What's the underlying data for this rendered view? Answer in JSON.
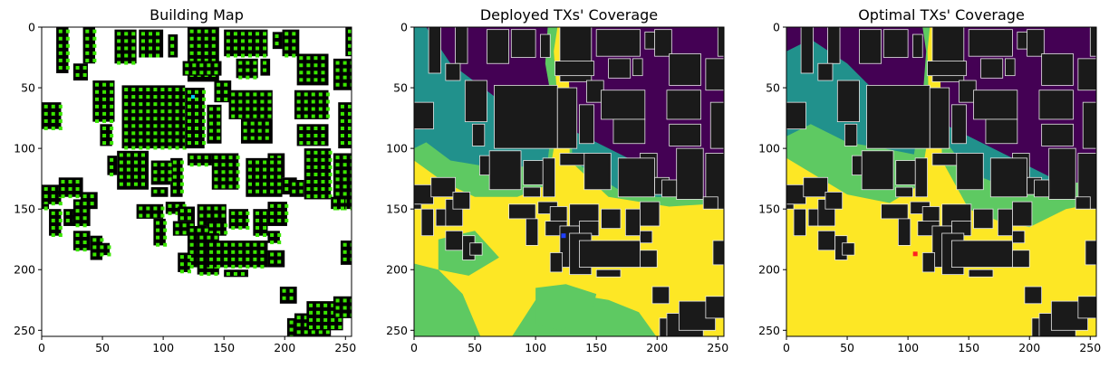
{
  "chart_data": [
    {
      "type": "heatmap",
      "title": "Building Map",
      "xlim": [
        0,
        255
      ],
      "ylim": [
        255,
        0
      ],
      "xticks": [
        0,
        50,
        100,
        150,
        200,
        250
      ],
      "yticks": [
        0,
        50,
        100,
        150,
        200,
        250
      ],
      "grid": false,
      "colors": {
        "background": "#ffffff",
        "building": "#000000",
        "marker": "#39e600",
        "marker_alt": "#00c8ff"
      },
      "buildings": [
        [
          12,
          0,
          22,
          38
        ],
        [
          34,
          0,
          44,
          30
        ],
        [
          26,
          30,
          38,
          44
        ],
        [
          60,
          2,
          78,
          30
        ],
        [
          80,
          2,
          100,
          25
        ],
        [
          104,
          6,
          112,
          25
        ],
        [
          120,
          0,
          146,
          45
        ],
        [
          150,
          2,
          186,
          24
        ],
        [
          198,
          2,
          212,
          24
        ],
        [
          190,
          4,
          198,
          18
        ],
        [
          250,
          0,
          256,
          24
        ],
        [
          240,
          26,
          256,
          52
        ],
        [
          116,
          28,
          148,
          40
        ],
        [
          160,
          26,
          178,
          42
        ],
        [
          180,
          26,
          188,
          40
        ],
        [
          210,
          22,
          236,
          48
        ],
        [
          0,
          62,
          16,
          84
        ],
        [
          42,
          44,
          60,
          78
        ],
        [
          66,
          48,
          118,
          100
        ],
        [
          48,
          80,
          58,
          98
        ],
        [
          118,
          50,
          134,
          100
        ],
        [
          142,
          44,
          156,
          62
        ],
        [
          136,
          64,
          148,
          96
        ],
        [
          154,
          52,
          190,
          76
        ],
        [
          164,
          76,
          190,
          96
        ],
        [
          208,
          52,
          236,
          76
        ],
        [
          210,
          80,
          236,
          98
        ],
        [
          244,
          62,
          256,
          100
        ],
        [
          120,
          104,
          144,
          114
        ],
        [
          106,
          108,
          116,
          140
        ],
        [
          90,
          110,
          106,
          130
        ],
        [
          90,
          132,
          104,
          140
        ],
        [
          62,
          102,
          88,
          134
        ],
        [
          54,
          106,
          62,
          122
        ],
        [
          186,
          104,
          200,
          124
        ],
        [
          140,
          104,
          162,
          134
        ],
        [
          168,
          108,
          198,
          140
        ],
        [
          198,
          124,
          210,
          138
        ],
        [
          216,
          100,
          238,
          142
        ],
        [
          240,
          104,
          256,
          150
        ],
        [
          204,
          126,
          216,
          140
        ],
        [
          238,
          140,
          250,
          150
        ],
        [
          0,
          130,
          16,
          146
        ],
        [
          14,
          124,
          34,
          140
        ],
        [
          6,
          150,
          16,
          172
        ],
        [
          18,
          150,
          28,
          164
        ],
        [
          26,
          142,
          40,
          164
        ],
        [
          32,
          136,
          46,
          150
        ],
        [
          26,
          168,
          40,
          184
        ],
        [
          40,
          172,
          50,
          192
        ],
        [
          78,
          146,
          100,
          158
        ],
        [
          102,
          144,
          118,
          154
        ],
        [
          92,
          158,
          102,
          180
        ],
        [
          108,
          160,
          126,
          172
        ],
        [
          112,
          148,
          126,
          160
        ],
        [
          128,
          146,
          152,
          164
        ],
        [
          154,
          150,
          170,
          166
        ],
        [
          174,
          150,
          186,
          172
        ],
        [
          186,
          144,
          202,
          164
        ],
        [
          136,
          160,
          152,
          172
        ],
        [
          186,
          168,
          196,
          178
        ],
        [
          120,
          164,
          136,
          198
        ],
        [
          128,
          170,
          146,
          204
        ],
        [
          136,
          176,
          186,
          198
        ],
        [
          186,
          184,
          200,
          198
        ],
        [
          150,
          200,
          170,
          206
        ],
        [
          112,
          186,
          122,
          202
        ],
        [
          0,
          146,
          6,
          150
        ],
        [
          46,
          178,
          56,
          188
        ],
        [
          246,
          176,
          256,
          196
        ],
        [
          196,
          214,
          210,
          228
        ],
        [
          202,
          240,
          226,
          256
        ],
        [
          208,
          236,
          238,
          256
        ],
        [
          218,
          226,
          248,
          250
        ],
        [
          240,
          222,
          256,
          240
        ]
      ]
    },
    {
      "type": "heatmap",
      "title": "Deployed TXs' Coverage",
      "xlim": [
        0,
        255
      ],
      "ylim": [
        255,
        0
      ],
      "xticks": [
        0,
        50,
        100,
        150,
        200,
        250
      ],
      "yticks": [
        0,
        50,
        100,
        150,
        200,
        250
      ],
      "grid": false,
      "colormap": "viridis",
      "colors": {
        "low": "#440154",
        "mid_low": "#21918c",
        "mid_high": "#5ec962",
        "high": "#fde725",
        "building": "#1a1a1a",
        "building_outline": "#e8e8e8",
        "tx": "#1f3fff"
      },
      "tx": [
        [
          123,
          172
        ]
      ]
    },
    {
      "type": "heatmap",
      "title": "Optimal TXs' Coverage",
      "xlim": [
        0,
        255
      ],
      "ylim": [
        255,
        0
      ],
      "xticks": [
        0,
        50,
        100,
        150,
        200,
        250
      ],
      "yticks": [
        0,
        50,
        100,
        150,
        200,
        250
      ],
      "grid": false,
      "colormap": "viridis",
      "colors": {
        "low": "#440154",
        "mid_low": "#21918c",
        "mid_high": "#5ec962",
        "high": "#fde725",
        "building": "#1a1a1a",
        "building_outline": "#e8e8e8",
        "tx": "#ff2020"
      },
      "tx": [
        [
          106,
          187
        ]
      ]
    }
  ]
}
